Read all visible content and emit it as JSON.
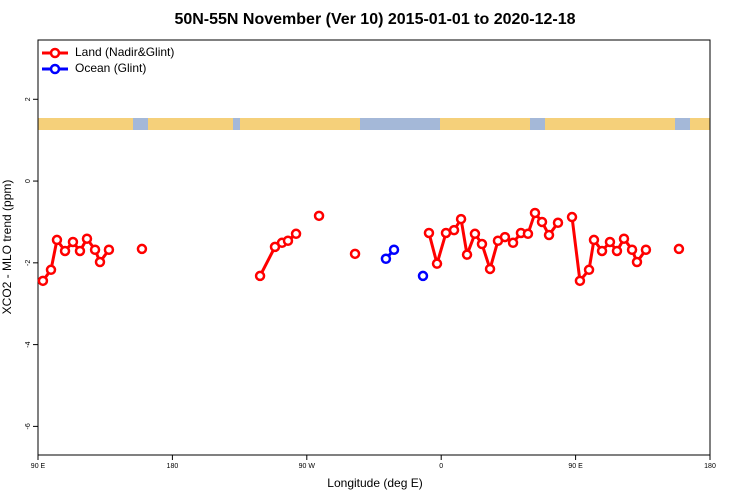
{
  "chart_data": {
    "type": "line",
    "title": "50N-55N November (Ver 10)   2015-01-01 to 2020-12-18",
    "x_label": "Longitude (deg E)",
    "y_label": "XCO2 - MLO trend (ppm)",
    "xlim": [
      90,
      540
    ],
    "ylim": [
      -6.7,
      3.45
    ],
    "xticks": [
      {
        "value": 90,
        "label": "90 E"
      },
      180,
      {
        "value": 270,
        "label": "90 W"
      },
      {
        "value": 360,
        "label": "0"
      },
      {
        "value": 450,
        "label": "90 E"
      },
      {
        "value": 540,
        "label": "180"
      }
    ],
    "yticks": [
      2,
      0,
      -2,
      -4,
      -6
    ],
    "legend": "top-left",
    "series": [
      {
        "name": "Land (Nadir&Glint)",
        "color": "#ff0000",
        "x": [
          93.3,
          98.7,
          102.7,
          108.1,
          113.4,
          118.1,
          122.8,
          128.2,
          131.5,
          137.5,
          null,
          159.6,
          null,
          238.7,
          248.7,
          253.4,
          257.4,
          262.8,
          null,
          278.2,
          null,
          302.3,
          null,
          351.8,
          357.2,
          363.2,
          368.6,
          373.3,
          377.3,
          382.6,
          387.3,
          392.7,
          398.0,
          402.7,
          408.1,
          413.4,
          418.1,
          422.8,
          427.5,
          432.2,
          438.2,
          null,
          447.6,
          452.9,
          459.0,
          462.3,
          467.7,
          473.0,
          477.7,
          482.4,
          487.8,
          491.1,
          497.1,
          null,
          519.2
        ],
        "values": [
          -2.44,
          -2.17,
          -1.44,
          -1.71,
          -1.49,
          -1.71,
          -1.41,
          -1.68,
          -1.98,
          -1.68,
          null,
          -1.66,
          null,
          -2.32,
          -1.61,
          -1.51,
          -1.46,
          -1.29,
          null,
          -0.85,
          null,
          -1.78,
          null,
          -1.27,
          -2.02,
          -1.27,
          -1.2,
          -0.93,
          -1.8,
          -1.29,
          -1.54,
          -2.15,
          -1.46,
          -1.37,
          -1.51,
          -1.27,
          -1.29,
          -0.78,
          -1.0,
          -1.32,
          -1.02,
          null,
          -0.88,
          -2.44,
          -2.17,
          -1.44,
          -1.71,
          -1.49,
          -1.71,
          -1.41,
          -1.68,
          -1.98,
          -1.68,
          null,
          -1.66
        ]
      },
      {
        "name": "Ocean (Glint)",
        "color": "#0000ff",
        "x": [
          323.0,
          328.4,
          null,
          347.8
        ],
        "values": [
          -1.9,
          -1.68,
          null,
          -2.32
        ]
      }
    ]
  }
}
